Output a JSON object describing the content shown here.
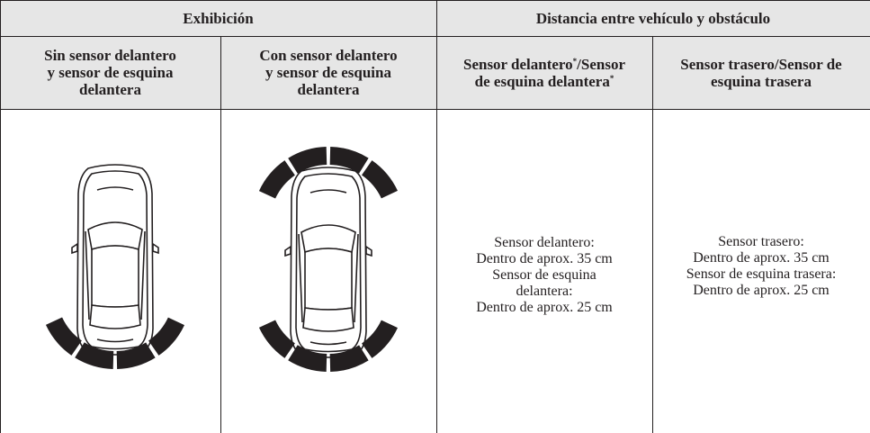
{
  "table": {
    "group_headers": [
      "Exhibición",
      "Distancia entre vehículo y obstáculo"
    ],
    "column_headers": [
      {
        "lines": [
          "Sin sensor delantero",
          "y sensor de esquina",
          "delantera"
        ]
      },
      {
        "lines": [
          "Con sensor delantero",
          "y sensor de esquina",
          "delantera"
        ]
      },
      {
        "lines": [
          [
            "Sensor delantero",
            "*",
            "/Sensor"
          ],
          [
            "de esquina delantera",
            "*"
          ]
        ]
      },
      {
        "lines": [
          [
            "Sensor trasero/Sensor de"
          ],
          [
            "esquina trasera"
          ]
        ]
      }
    ],
    "body": [
      {
        "lines": [
          "Sensor delantero:",
          "Dentro de aprox. 35 cm",
          "Sensor de esquina",
          "delantera:",
          "Dentro de aprox. 25 cm"
        ]
      },
      {
        "lines": [
          "Sensor trasero:",
          "Dentro de aprox. 35 cm",
          "Sensor de esquina trasera:",
          "Dentro de aprox. 25 cm"
        ]
      }
    ]
  }
}
